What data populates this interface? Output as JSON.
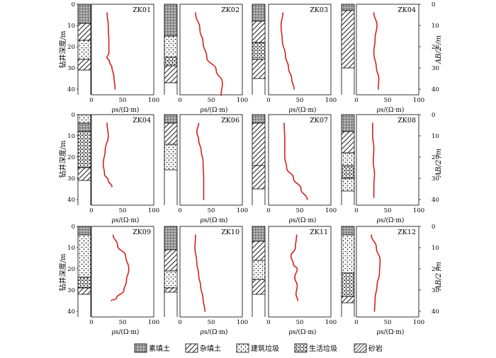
{
  "chart_data": {
    "type": "line",
    "y_axis_label_left": "钻井深度/m",
    "y_axis_label_right": "AB/2 /m",
    "x_axis_label": "ρs/(Ω·m)",
    "x_ticks": [
      "0",
      "50",
      "100"
    ],
    "depth_ticks": [
      "0",
      "10",
      "20",
      "30",
      "40"
    ],
    "xlim": [
      0,
      100
    ],
    "ylim_depth": [
      0,
      45
    ],
    "line_color": "#d42020",
    "legend": [
      {
        "key": "suTianTu",
        "label": "素填土"
      },
      {
        "key": "zaTianTu",
        "label": "杂填土"
      },
      {
        "key": "jianZhu",
        "label": "建筑垃圾"
      },
      {
        "key": "shengHuo",
        "label": "生活垃圾"
      },
      {
        "key": "shaYan",
        "label": "砂岩"
      }
    ],
    "panels": [
      {
        "id": "ZK01",
        "log": [
          {
            "top": 0,
            "bottom": 9,
            "type": "suTianTu"
          },
          {
            "top": 9,
            "bottom": 17,
            "type": "zaTianTu"
          },
          {
            "top": 17,
            "bottom": 26,
            "type": "jianZhu"
          },
          {
            "top": 26,
            "bottom": 31,
            "type": "zaTianTu"
          }
        ],
        "profile": [
          [
            25,
            4
          ],
          [
            27,
            10
          ],
          [
            28,
            18
          ],
          [
            28,
            23
          ],
          [
            25,
            25
          ],
          [
            29,
            27
          ],
          [
            33,
            30
          ],
          [
            36,
            34
          ],
          [
            38,
            40
          ]
        ]
      },
      {
        "id": "ZK02",
        "log": [
          {
            "top": 0,
            "bottom": 15,
            "type": "suTianTu"
          },
          {
            "top": 15,
            "bottom": 25,
            "type": "jianZhu"
          },
          {
            "top": 25,
            "bottom": 29,
            "type": "shengHuo"
          },
          {
            "top": 29,
            "bottom": 37,
            "type": "zaTianTu"
          }
        ],
        "profile": [
          [
            25,
            4
          ],
          [
            32,
            12
          ],
          [
            37,
            18
          ],
          [
            43,
            25
          ],
          [
            58,
            31
          ],
          [
            68,
            37
          ],
          [
            66,
            43
          ]
        ]
      },
      {
        "id": "ZK03",
        "log": [
          {
            "top": 0,
            "bottom": 8,
            "type": "suTianTu"
          },
          {
            "top": 8,
            "bottom": 18,
            "type": "zaTianTu"
          },
          {
            "top": 18,
            "bottom": 26,
            "type": "shengHuo"
          },
          {
            "top": 26,
            "bottom": 35,
            "type": "zaTianTu"
          }
        ],
        "profile": [
          [
            23,
            4
          ],
          [
            20,
            10
          ],
          [
            22,
            17
          ],
          [
            27,
            24
          ],
          [
            32,
            30
          ],
          [
            37,
            35
          ],
          [
            41,
            40
          ]
        ]
      },
      {
        "id": "ZK04",
        "log": [
          {
            "top": 0,
            "bottom": 3,
            "type": "suTianTu"
          },
          {
            "top": 3,
            "bottom": 30,
            "type": "zaTianTu"
          }
        ],
        "profile": [
          [
            28,
            4
          ],
          [
            33,
            10
          ],
          [
            30,
            16
          ],
          [
            28,
            23
          ],
          [
            32,
            30
          ],
          [
            36,
            35
          ],
          [
            35,
            40
          ]
        ]
      },
      {
        "id": "ZK04",
        "log": [
          {
            "top": 0,
            "bottom": 4,
            "type": "jianZhu"
          },
          {
            "top": 4,
            "bottom": 8,
            "type": "suTianTu"
          },
          {
            "top": 8,
            "bottom": 25,
            "type": "shengHuo"
          },
          {
            "top": 25,
            "bottom": 31,
            "type": "zaTianTu"
          }
        ],
        "profile": [
          [
            25,
            4
          ],
          [
            27,
            10
          ],
          [
            22,
            17
          ],
          [
            19,
            23
          ],
          [
            21,
            28
          ],
          [
            27,
            31
          ],
          [
            33,
            34
          ]
        ]
      },
      {
        "id": "ZK06",
        "log": [
          {
            "top": 0,
            "bottom": 4,
            "type": "suTianTu"
          },
          {
            "top": 4,
            "bottom": 14,
            "type": "zaTianTu"
          },
          {
            "top": 14,
            "bottom": 26,
            "type": "jianZhu"
          }
        ],
        "profile": [
          [
            30,
            4
          ],
          [
            27,
            8
          ],
          [
            30,
            12
          ],
          [
            34,
            17
          ],
          [
            37,
            22
          ],
          [
            38,
            30
          ],
          [
            38,
            40
          ]
        ]
      },
      {
        "id": "ZK07",
        "log": [
          {
            "top": 0,
            "bottom": 4,
            "type": "suTianTu"
          },
          {
            "top": 4,
            "bottom": 24,
            "type": "zaTianTu"
          },
          {
            "top": 24,
            "bottom": 35,
            "type": "zaTianTu"
          }
        ],
        "profile": [
          [
            25,
            4
          ],
          [
            26,
            12
          ],
          [
            26,
            20
          ],
          [
            29,
            25
          ],
          [
            40,
            30
          ],
          [
            52,
            35
          ],
          [
            62,
            40
          ]
        ]
      },
      {
        "id": "ZK08",
        "log": [
          {
            "top": 0,
            "bottom": 8,
            "type": "suTianTu"
          },
          {
            "top": 8,
            "bottom": 18,
            "type": "zaTianTu"
          },
          {
            "top": 18,
            "bottom": 24,
            "type": "jianZhu"
          },
          {
            "top": 24,
            "bottom": 30,
            "type": "shengHuo"
          },
          {
            "top": 30,
            "bottom": 36,
            "type": "jianZhu"
          }
        ],
        "profile": [
          [
            26,
            4
          ],
          [
            26,
            10
          ],
          [
            28,
            16
          ],
          [
            27,
            22
          ],
          [
            29,
            28
          ],
          [
            28,
            33
          ],
          [
            28,
            39
          ]
        ]
      },
      {
        "id": "ZK09",
        "log": [
          {
            "top": 0,
            "bottom": 4,
            "type": "suTianTu"
          },
          {
            "top": 4,
            "bottom": 24,
            "type": "jianZhu"
          },
          {
            "top": 24,
            "bottom": 29,
            "type": "shengHuo"
          },
          {
            "top": 29,
            "bottom": 32,
            "type": "zaTianTu"
          }
        ],
        "profile": [
          [
            35,
            4
          ],
          [
            42,
            9
          ],
          [
            55,
            14
          ],
          [
            60,
            20
          ],
          [
            56,
            26
          ],
          [
            52,
            30
          ],
          [
            40,
            34
          ],
          [
            32,
            35
          ]
        ]
      },
      {
        "id": "ZK10",
        "log": [
          {
            "top": 0,
            "bottom": 11,
            "type": "suTianTu"
          },
          {
            "top": 11,
            "bottom": 21,
            "type": "zaTianTu"
          },
          {
            "top": 21,
            "bottom": 29,
            "type": "jianZhu"
          },
          {
            "top": 29,
            "bottom": 31,
            "type": "zaTianTu"
          }
        ],
        "profile": [
          [
            25,
            4
          ],
          [
            24,
            10
          ],
          [
            27,
            17
          ],
          [
            30,
            23
          ],
          [
            33,
            28
          ],
          [
            37,
            34
          ],
          [
            40,
            40
          ]
        ]
      },
      {
        "id": "ZK11",
        "log": [
          {
            "top": 0,
            "bottom": 7,
            "type": "suTianTu"
          },
          {
            "top": 7,
            "bottom": 16,
            "type": "zaTianTu"
          },
          {
            "top": 16,
            "bottom": 25,
            "type": "jianZhu"
          },
          {
            "top": 25,
            "bottom": 32,
            "type": "zaTianTu"
          }
        ],
        "profile": [
          [
            45,
            4
          ],
          [
            43,
            10
          ],
          [
            36,
            14
          ],
          [
            40,
            18
          ],
          [
            46,
            20
          ],
          [
            42,
            24
          ],
          [
            46,
            28
          ],
          [
            44,
            32
          ],
          [
            47,
            35
          ]
        ]
      },
      {
        "id": "ZK12",
        "log": [
          {
            "top": 0,
            "bottom": 4,
            "type": "suTianTu"
          },
          {
            "top": 4,
            "bottom": 22,
            "type": "jianZhu"
          },
          {
            "top": 22,
            "bottom": 33,
            "type": "shengHuo"
          },
          {
            "top": 33,
            "bottom": 36,
            "type": "zaTianTu"
          }
        ],
        "profile": [
          [
            24,
            4
          ],
          [
            32,
            10
          ],
          [
            38,
            16
          ],
          [
            37,
            22
          ],
          [
            33,
            28
          ],
          [
            30,
            34
          ],
          [
            29,
            40
          ]
        ]
      }
    ]
  }
}
